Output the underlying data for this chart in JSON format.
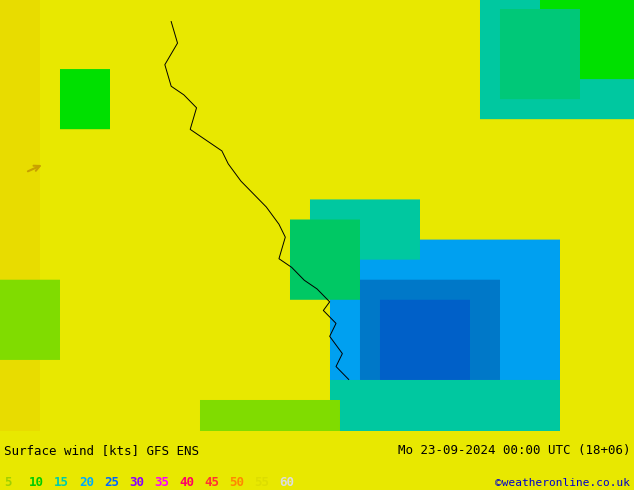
{
  "title_left": "Surface wind [kts] GFS ENS",
  "title_right": "Mo 23-09-2024 00:00 UTC (18+06)",
  "credit": "©weatheronline.co.uk",
  "colorbar_values": [
    5,
    10,
    15,
    20,
    25,
    30,
    35,
    40,
    45,
    50,
    55,
    60
  ],
  "colorbar_colors": [
    "#a0e000",
    "#00e000",
    "#00e0a0",
    "#00c8ff",
    "#0080ff",
    "#a000ff",
    "#ff00ff",
    "#ff0080",
    "#ff4040",
    "#ff8000",
    "#ffff00",
    "#ffffff"
  ],
  "colorbar_text_colors": [
    "#a0e000",
    "#00e000",
    "#00e0a0",
    "#00c8ff",
    "#0080ff",
    "#a000ff",
    "#ff00ff",
    "#ff0080",
    "#ff4040",
    "#ff8000",
    "#ffff00",
    "#ffffff"
  ],
  "bg_color": "#e8e800",
  "map_colors": {
    "low_wind": "#e8e800",
    "medium_low": "#a0e000",
    "medium": "#00e000",
    "medium_high": "#00e0c0",
    "high": "#00c0ff",
    "very_high": "#0060e0"
  },
  "figsize": [
    6.34,
    4.9
  ],
  "dpi": 100
}
